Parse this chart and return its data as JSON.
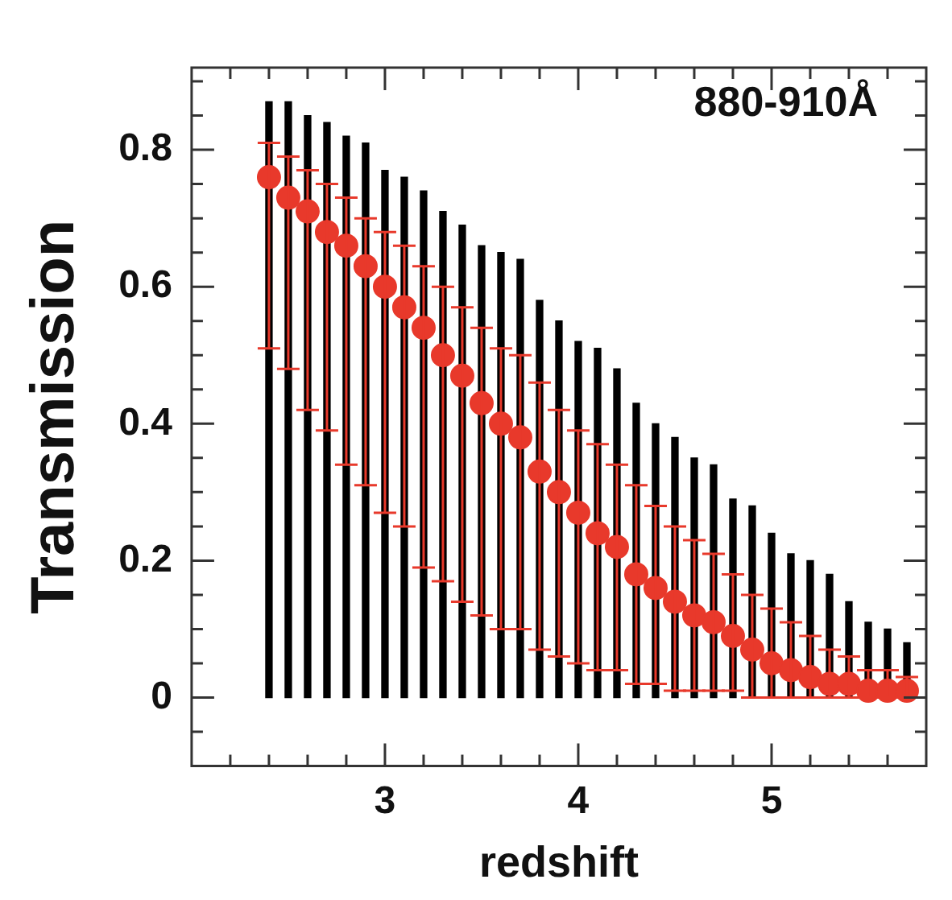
{
  "chart_data": {
    "type": "bar",
    "xlabel": "redshift",
    "ylabel": "Transmission",
    "annotations": [
      "880-910Å"
    ],
    "x": [
      2.4,
      2.5,
      2.6,
      2.7,
      2.8,
      2.9,
      3.0,
      3.1,
      3.2,
      3.3,
      3.4,
      3.5,
      3.6,
      3.7,
      3.8,
      3.9,
      4.0,
      4.1,
      4.2,
      4.3,
      4.4,
      4.5,
      4.6,
      4.7,
      4.8,
      4.9,
      5.0,
      5.1,
      5.2,
      5.3,
      5.4,
      5.5,
      5.6,
      5.7
    ],
    "xlim": [
      2.0,
      5.8
    ],
    "xticks": [
      {
        "value": 2.2,
        "label": null
      },
      {
        "value": 2.4,
        "label": null
      },
      {
        "value": 2.6,
        "label": null
      },
      {
        "value": 2.8,
        "label": null
      },
      3,
      {
        "value": 3.2,
        "label": null
      },
      {
        "value": 3.4,
        "label": null
      },
      {
        "value": 3.6,
        "label": null
      },
      {
        "value": 3.8,
        "label": null
      },
      4,
      {
        "value": 4.2,
        "label": null
      },
      {
        "value": 4.4,
        "label": null
      },
      {
        "value": 4.6,
        "label": null
      },
      {
        "value": 4.8,
        "label": null
      },
      5,
      {
        "value": 5.2,
        "label": null
      },
      {
        "value": 5.4,
        "label": null
      },
      {
        "value": 5.6,
        "label": null
      }
    ],
    "ylim": [
      -0.1,
      0.92
    ],
    "yticks": [
      {
        "value": -0.05,
        "label": null
      },
      0,
      {
        "value": 0.05,
        "label": null
      },
      {
        "value": 0.1,
        "label": null
      },
      {
        "value": 0.15,
        "label": null
      },
      0.2,
      {
        "value": 0.25,
        "label": null
      },
      {
        "value": 0.3,
        "label": null
      },
      {
        "value": 0.35,
        "label": null
      },
      0.4,
      {
        "value": 0.45,
        "label": null
      },
      {
        "value": 0.5,
        "label": null
      },
      {
        "value": 0.55,
        "label": null
      },
      0.6,
      {
        "value": 0.65,
        "label": null
      },
      {
        "value": 0.7,
        "label": null
      },
      {
        "value": 0.75,
        "label": null
      },
      0.8,
      {
        "value": 0.85,
        "label": null
      },
      {
        "value": 0.9,
        "label": null
      }
    ],
    "series": [
      {
        "color": "#000000",
        "values": [
          0.87,
          0.87,
          0.85,
          0.84,
          0.82,
          0.81,
          0.77,
          0.76,
          0.74,
          0.71,
          0.69,
          0.66,
          0.65,
          0.64,
          0.58,
          0.55,
          0.52,
          0.51,
          0.48,
          0.43,
          0.4,
          0.38,
          0.35,
          0.34,
          0.29,
          0.28,
          0.24,
          0.21,
          0.2,
          0.18,
          0.14,
          0.11,
          0.1,
          0.08
        ]
      },
      {
        "type": "scatter",
        "color": "#e8392b",
        "marker": "circle",
        "values": [
          0.76,
          0.73,
          0.71,
          0.68,
          0.66,
          0.63,
          0.6,
          0.57,
          0.54,
          0.5,
          0.47,
          0.43,
          0.4,
          0.38,
          0.33,
          0.3,
          0.27,
          0.24,
          0.22,
          0.18,
          0.16,
          0.14,
          0.12,
          0.11,
          0.09,
          0.07,
          0.05,
          0.04,
          0.03,
          0.02,
          0.02,
          0.01,
          0.01,
          0.01
        ],
        "errors": [
          [
            0.51,
            0.81
          ],
          [
            0.48,
            0.79
          ],
          [
            0.42,
            0.77
          ],
          [
            0.39,
            0.75
          ],
          [
            0.34,
            0.73
          ],
          [
            0.31,
            0.7
          ],
          [
            0.27,
            0.68
          ],
          [
            0.25,
            0.66
          ],
          [
            0.19,
            0.63
          ],
          [
            0.17,
            0.6
          ],
          [
            0.14,
            0.57
          ],
          [
            0.12,
            0.54
          ],
          [
            0.1,
            0.51
          ],
          [
            0.1,
            0.5
          ],
          [
            0.07,
            0.46
          ],
          [
            0.06,
            0.42
          ],
          [
            0.05,
            0.39
          ],
          [
            0.04,
            0.37
          ],
          [
            0.04,
            0.34
          ],
          [
            0.02,
            0.31
          ],
          [
            0.02,
            0.28
          ],
          [
            0.01,
            0.25
          ],
          [
            0.01,
            0.23
          ],
          [
            0.01,
            0.21
          ],
          [
            0.01,
            0.18
          ],
          [
            0,
            0.15
          ],
          [
            0,
            0.13
          ],
          [
            0,
            0.11
          ],
          [
            0,
            0.09
          ],
          [
            0,
            0.07
          ],
          [
            0,
            0.06
          ],
          [
            0,
            0.04
          ],
          [
            0,
            0.04
          ],
          [
            0,
            0.03
          ]
        ]
      }
    ]
  }
}
